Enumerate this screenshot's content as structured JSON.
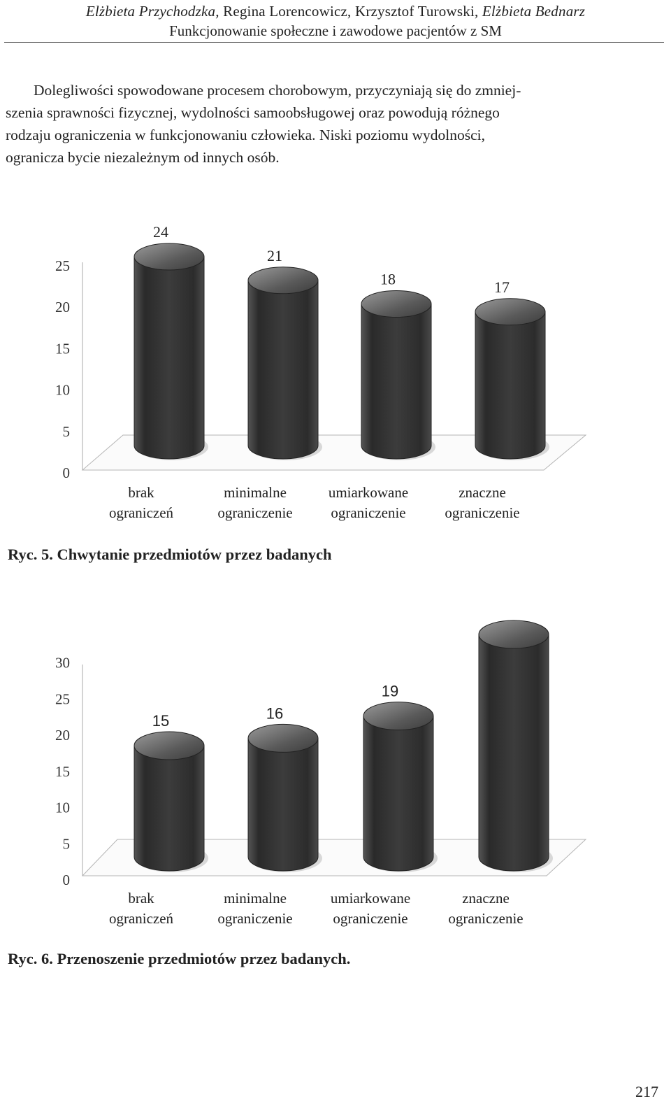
{
  "header": {
    "author_1": "Elżbieta Przychodzka,",
    "authors_rest": " Regina Lorencowicz, Krzysztof Turowski,",
    "author_4": " Elżbieta Bednarz",
    "subtitle": "Funkcjonowanie społeczne i zawodowe pacjentów z SM"
  },
  "paragraph": {
    "line_1": "Dolegliwości spowodowane procesem chorobowym, przyczyniają się do zmniej-",
    "line_2": "szenia sprawności fizycznej, wydolności samoobsługowej oraz powodują różnego",
    "line_3": "rodzaju ograniczenia w funkcjonowaniu człowieka. Niski poziomu wydolności,",
    "line_4": "ogranicza bycie niezależnym od innych osób."
  },
  "chart_data": [
    {
      "type": "bar",
      "style": "3d-cylinder",
      "categories": [
        [
          "brak",
          "ograniczeń"
        ],
        [
          "minimalne",
          "ograniczenie"
        ],
        [
          "umiarkowane",
          "ograniczenie"
        ],
        [
          "znaczne",
          "ograniczenie"
        ]
      ],
      "values": [
        24,
        21,
        18,
        17
      ],
      "yticks": [
        "0",
        "5",
        "10",
        "15",
        "20",
        "25"
      ],
      "ylim": [
        0,
        25
      ],
      "grid": false,
      "bar_color": "#3a3a3a",
      "value_font": "serif"
    },
    {
      "type": "bar",
      "style": "3d-cylinder",
      "categories": [
        [
          "brak",
          "ograniczeń"
        ],
        [
          "minimalne",
          "ograniczenie"
        ],
        [
          "umiarkowane",
          "ograniczenie"
        ],
        [
          "znaczne",
          "ograniczenie"
        ]
      ],
      "values": [
        15,
        16,
        19,
        30
      ],
      "yticks": [
        "0",
        "5",
        "10",
        "15",
        "20",
        "25",
        "30"
      ],
      "ylim": [
        0,
        30
      ],
      "grid": false,
      "bar_color": "#3a3a3a",
      "value_font": "sans"
    }
  ],
  "captions": {
    "fig5": "Ryc. 5. Chwytanie przedmiotów przez badanych",
    "fig6": "Ryc. 6. Przenoszenie przedmiotów przez badanych."
  },
  "page_number": "217"
}
